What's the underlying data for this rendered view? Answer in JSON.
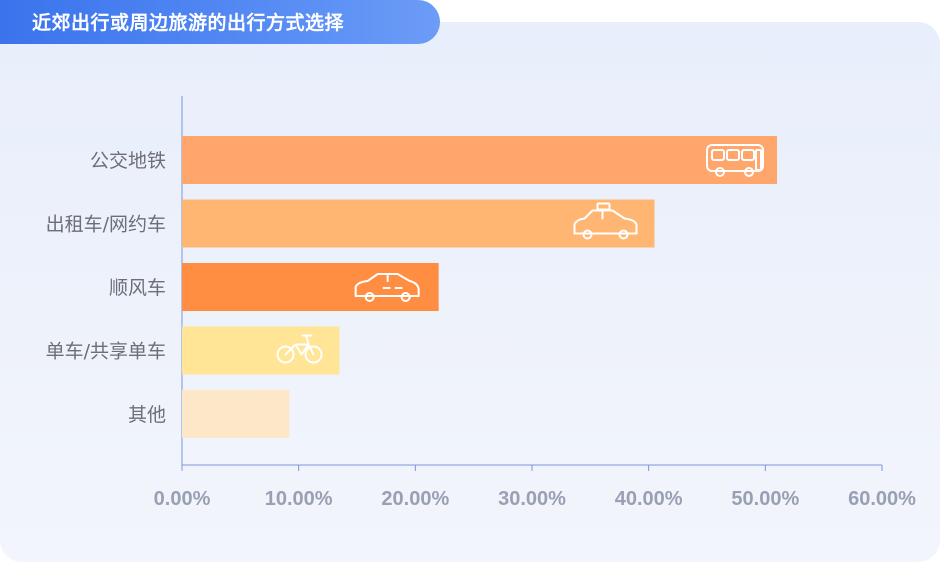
{
  "title": "近郊出行或周边旅游的出行方式选择",
  "chart_data": {
    "type": "bar",
    "orientation": "horizontal",
    "title": "近郊出行或周边旅游的出行方式选择",
    "categories": [
      "公交地铁",
      "出租车/网约车",
      "顺风车",
      "单车/共享单车",
      "其他"
    ],
    "values": [
      51.0,
      40.5,
      22.0,
      13.5,
      9.2
    ],
    "unit": "%",
    "xlim": [
      0,
      60
    ],
    "xticks": [
      "0.00%",
      "10.00%",
      "20.00%",
      "30.00%",
      "40.00%",
      "50.00%",
      "60.00%"
    ],
    "xtick_values": [
      0,
      10,
      20,
      30,
      40,
      50,
      60
    ],
    "grid": false,
    "colors": [
      "#fea66c",
      "#ffb672",
      "#ff8e43",
      "#ffe595",
      "#fde7c9"
    ],
    "icons": [
      "bus-icon",
      "taxi-icon",
      "car-icon",
      "bicycle-icon",
      ""
    ]
  }
}
